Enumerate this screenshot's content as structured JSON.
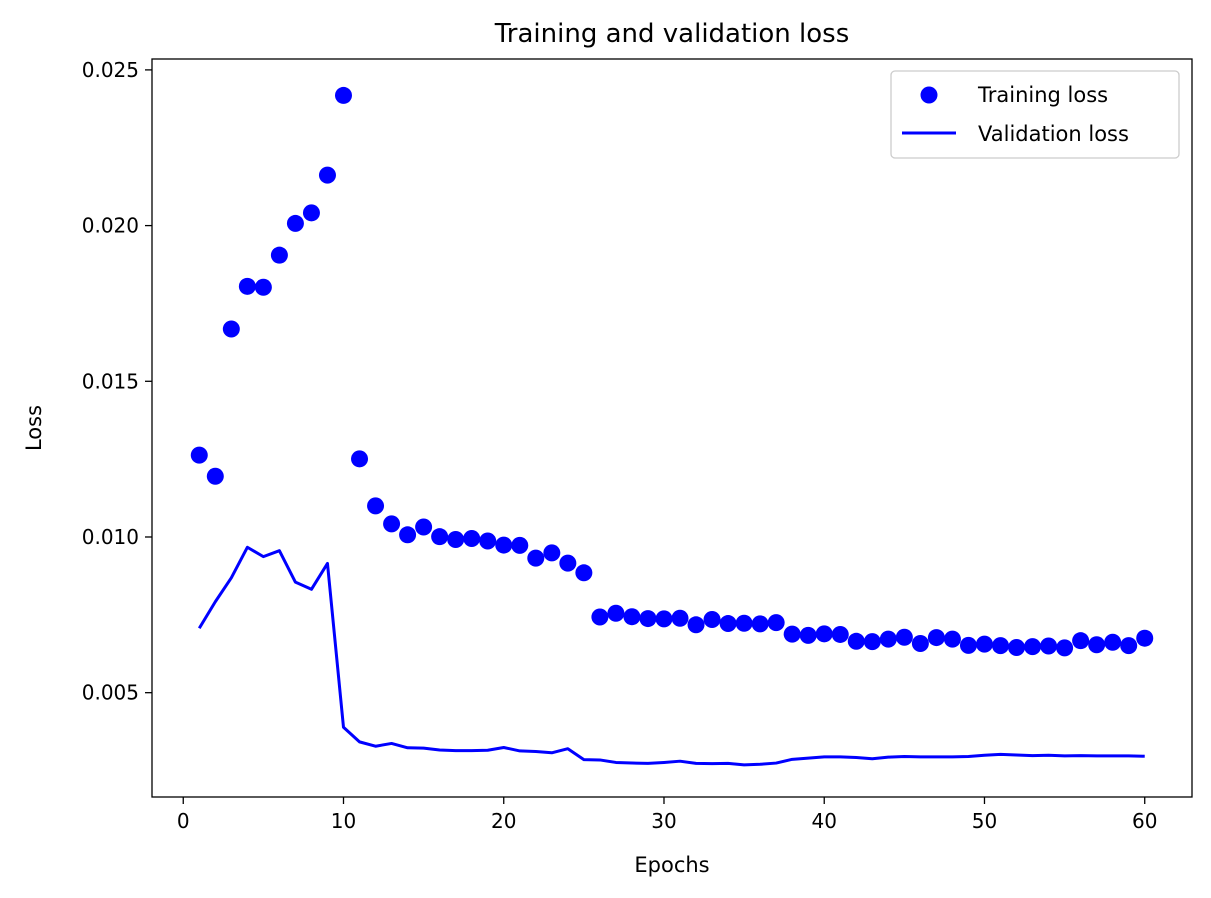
{
  "chart_data": {
    "type": "line",
    "title": "Training and validation loss",
    "xlabel": "Epochs",
    "ylabel": "Loss",
    "xlim": [
      -1.95,
      62.95
    ],
    "ylim": [
      0.00165,
      0.02535
    ],
    "xticks": [
      0,
      10,
      20,
      30,
      40,
      50,
      60
    ],
    "xtick_labels": [
      "0",
      "10",
      "20",
      "30",
      "40",
      "50",
      "60"
    ],
    "yticks": [
      0.005,
      0.01,
      0.015,
      0.02,
      0.025
    ],
    "ytick_labels": [
      "0.005",
      "0.010",
      "0.015",
      "0.020",
      "0.025"
    ],
    "grid": false,
    "legend_position": "top-right",
    "colors": {
      "series": "#0000ff",
      "axis": "#000000"
    },
    "series": [
      {
        "name": "Training loss",
        "style": "markers",
        "x": [
          1,
          2,
          3,
          4,
          5,
          6,
          7,
          8,
          9,
          10,
          11,
          12,
          13,
          14,
          15,
          16,
          17,
          18,
          19,
          20,
          21,
          22,
          23,
          24,
          25,
          26,
          27,
          28,
          29,
          30,
          31,
          32,
          33,
          34,
          35,
          36,
          37,
          38,
          39,
          40,
          41,
          42,
          43,
          44,
          45,
          46,
          47,
          48,
          49,
          50,
          51,
          52,
          53,
          54,
          55,
          56,
          57,
          58,
          59,
          60
        ],
        "values": [
          0.01263,
          0.01195,
          0.01668,
          0.01805,
          0.01802,
          0.01905,
          0.02007,
          0.02041,
          0.02162,
          0.02418,
          0.01251,
          0.011,
          0.01042,
          0.01007,
          0.01032,
          0.01001,
          0.00992,
          0.00995,
          0.00987,
          0.00974,
          0.00973,
          0.00932,
          0.00949,
          0.00916,
          0.00885,
          0.00743,
          0.00755,
          0.00744,
          0.00738,
          0.00737,
          0.00739,
          0.00718,
          0.00735,
          0.00722,
          0.00723,
          0.00721,
          0.00725,
          0.00688,
          0.00684,
          0.00689,
          0.00687,
          0.00665,
          0.00664,
          0.00672,
          0.00678,
          0.00658,
          0.00677,
          0.00672,
          0.00652,
          0.00656,
          0.00651,
          0.00645,
          0.00648,
          0.0065,
          0.00644,
          0.00667,
          0.00654,
          0.00662,
          0.00651,
          0.00675
        ]
      },
      {
        "name": "Validation loss",
        "style": "line",
        "x": [
          1,
          2,
          3,
          4,
          5,
          6,
          7,
          8,
          9,
          10,
          11,
          12,
          13,
          14,
          15,
          16,
          17,
          18,
          19,
          20,
          21,
          22,
          23,
          24,
          25,
          26,
          27,
          28,
          29,
          30,
          31,
          32,
          33,
          34,
          35,
          36,
          37,
          38,
          39,
          40,
          41,
          42,
          43,
          44,
          45,
          46,
          47,
          48,
          49,
          50,
          51,
          52,
          53,
          54,
          55,
          56,
          57,
          58,
          59,
          60
        ],
        "values": [
          0.00707,
          0.00792,
          0.00869,
          0.00967,
          0.00937,
          0.00956,
          0.00855,
          0.00832,
          0.00915,
          0.00389,
          0.00342,
          0.00328,
          0.00337,
          0.00323,
          0.00322,
          0.00316,
          0.00314,
          0.00314,
          0.00315,
          0.00324,
          0.00313,
          0.00311,
          0.00307,
          0.0032,
          0.00285,
          0.00284,
          0.00276,
          0.00274,
          0.00273,
          0.00276,
          0.0028,
          0.00273,
          0.00272,
          0.00273,
          0.00268,
          0.0027,
          0.00274,
          0.00286,
          0.0029,
          0.00294,
          0.00294,
          0.00292,
          0.00288,
          0.00293,
          0.00295,
          0.00294,
          0.00294,
          0.00294,
          0.00295,
          0.00299,
          0.00302,
          0.003,
          0.00298,
          0.00299,
          0.00297,
          0.00298,
          0.00297,
          0.00297,
          0.00297,
          0.00296
        ]
      }
    ]
  }
}
